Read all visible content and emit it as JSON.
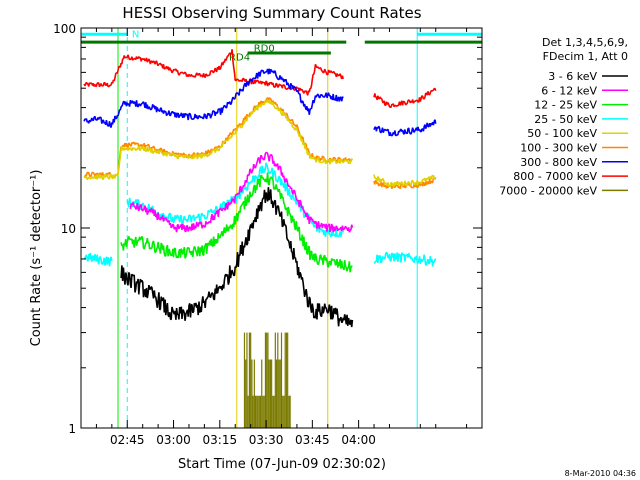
{
  "chart_data": {
    "type": "line",
    "title": "HESSI Observing Summary Count Rates",
    "xlabel": "Start Time (07-Jun-09 02:30:02)",
    "ylabel": "Count Rate (s⁻¹ detector⁻¹)",
    "yscale": "log",
    "ylim": [
      1,
      100
    ],
    "xlim_minutes": [
      30,
      160
    ],
    "x_ticks": [
      {
        "t": 45,
        "label": "02:45"
      },
      {
        "t": 60,
        "label": "03:00"
      },
      {
        "t": 75,
        "label": "03:15"
      },
      {
        "t": 90,
        "label": "03:30"
      },
      {
        "t": 105,
        "label": "03:45"
      },
      {
        "t": 120,
        "label": "04:00"
      }
    ],
    "y_ticks": [
      {
        "v": 1,
        "label": "1"
      },
      {
        "v": 10,
        "label": "10"
      },
      {
        "v": 100,
        "label": "100"
      }
    ],
    "legend": {
      "placement": "right",
      "header": [
        "Det 1,3,4,5,6,9,",
        "FDecim 1, Att 0"
      ]
    },
    "series": [
      {
        "name": "3 - 6 keV",
        "color": "#000000",
        "noise": 0.1,
        "t": [
          40,
          43,
          45,
          50,
          55,
          60,
          65,
          70,
          75,
          80,
          85,
          88,
          90,
          92,
          95,
          100,
          104,
          106,
          110,
          115,
          118
        ],
        "v": [
          null,
          6.0,
          5.6,
          5.0,
          4.4,
          3.6,
          3.8,
          4.2,
          5.0,
          6.5,
          10.0,
          13.0,
          15.0,
          14.0,
          11.0,
          6.5,
          4.2,
          3.8,
          4.0,
          3.4,
          3.3
        ]
      },
      {
        "name": "6 - 12 keV",
        "color": "#ff00ff",
        "noise": 0.05,
        "t": [
          46,
          50,
          55,
          60,
          65,
          70,
          75,
          80,
          85,
          88,
          90,
          92,
          95,
          100,
          104,
          106,
          110,
          115,
          118
        ],
        "v": [
          13.0,
          12.5,
          11.5,
          10.0,
          10.0,
          10.5,
          12.0,
          14.0,
          19.0,
          22.0,
          23.0,
          22.0,
          19.0,
          14.0,
          11.0,
          10.5,
          10.0,
          10.0,
          10.0
        ]
      },
      {
        "name": "12 - 25 keV",
        "color": "#00ee00",
        "noise": 0.07,
        "t": [
          43,
          45,
          50,
          55,
          60,
          65,
          70,
          75,
          80,
          85,
          88,
          90,
          92,
          95,
          100,
          104,
          106,
          110,
          115,
          118
        ],
        "v": [
          8.0,
          8.5,
          8.5,
          8.0,
          7.5,
          7.5,
          7.8,
          9.0,
          11.0,
          15.0,
          17.0,
          18.0,
          17.0,
          14.0,
          10.0,
          7.5,
          7.0,
          6.8,
          6.5,
          6.3
        ]
      },
      {
        "name": "25 - 50 keV",
        "color": "#00ffff",
        "noise": 0.06,
        "t": [
          31,
          35,
          40,
          43,
          45,
          50,
          55,
          60,
          65,
          70,
          75,
          80,
          85,
          88,
          90,
          92,
          95,
          100,
          104,
          106,
          110,
          115,
          120,
          125,
          130,
          140,
          145
        ],
        "v": [
          7.2,
          7.0,
          6.8,
          null,
          13.5,
          13.0,
          12.0,
          11.0,
          11.0,
          11.5,
          12.5,
          14.0,
          17.0,
          19.0,
          20.0,
          19.0,
          17.0,
          13.5,
          11.0,
          10.0,
          9.5,
          9.5,
          null,
          7.0,
          7.2,
          7.0,
          6.8
        ]
      },
      {
        "name": "50 - 100 keV",
        "color": "#e0d000",
        "noise": 0.03,
        "t": [
          31,
          42,
          43,
          50,
          55,
          60,
          65,
          70,
          75,
          80,
          85,
          88,
          90,
          92,
          95,
          100,
          104,
          106,
          110,
          115,
          118,
          120,
          125,
          130,
          140,
          145
        ],
        "v": [
          18.0,
          18.0,
          25.0,
          25.0,
          24.0,
          23.0,
          22.5,
          23.0,
          25.0,
          30.0,
          37.0,
          41.0,
          43.0,
          42.0,
          38.0,
          31.0,
          23.0,
          22.0,
          21.5,
          21.5,
          21.5,
          null,
          18.0,
          16.5,
          17.0,
          18.0
        ]
      },
      {
        "name": "100 - 300 keV",
        "color": "#ff8800",
        "noise": 0.03,
        "t": [
          31,
          42,
          43,
          50,
          55,
          60,
          65,
          70,
          75,
          80,
          85,
          88,
          90,
          92,
          95,
          100,
          104,
          106,
          110,
          115,
          118,
          120,
          125,
          130,
          140,
          145
        ],
        "v": [
          18.5,
          18.5,
          26.0,
          26.0,
          24.5,
          23.5,
          23.0,
          23.5,
          25.5,
          31.0,
          38.0,
          42.0,
          44.0,
          43.0,
          39.0,
          32.0,
          23.5,
          22.5,
          22.0,
          22.0,
          22.0,
          null,
          17.0,
          16.0,
          16.5,
          17.5
        ]
      },
      {
        "name": "300 - 800 keV",
        "color": "#0000ff",
        "noise": 0.04,
        "t": [
          31,
          35,
          40,
          44,
          50,
          55,
          60,
          65,
          70,
          75,
          79,
          80,
          85,
          88,
          90,
          92,
          95,
          100,
          104,
          106,
          110,
          115,
          120,
          125,
          130,
          140,
          145
        ],
        "v": [
          34.0,
          35.0,
          33.0,
          42.0,
          42.0,
          39.0,
          37.0,
          36.0,
          36.0,
          38.0,
          43.0,
          45.0,
          55.0,
          59.0,
          61.0,
          60.0,
          56.0,
          48.0,
          38.0,
          46.0,
          46.0,
          44.0,
          null,
          32.0,
          30.0,
          31.0,
          34.0
        ]
      },
      {
        "name": "800 - 7000 keV",
        "color": "#ff0000",
        "noise": 0.03,
        "t": [
          31,
          35,
          40,
          44,
          50,
          55,
          60,
          65,
          70,
          75,
          79,
          80,
          85,
          88,
          90,
          92,
          95,
          100,
          104,
          106,
          110,
          115,
          120,
          125,
          130,
          140,
          145
        ],
        "v": [
          52.0,
          52.0,
          52.0,
          72.0,
          70.0,
          66.0,
          61.0,
          58.0,
          58.0,
          63.0,
          77.0,
          55.0,
          54.0,
          53.0,
          53.0,
          52.0,
          51.0,
          50.0,
          47.0,
          64.0,
          60.0,
          57.0,
          null,
          46.0,
          41.0,
          44.0,
          50.0
        ]
      },
      {
        "name": "7000 - 20000 keV",
        "color": "#7a7a00",
        "noise": 0,
        "t": [
          81,
          99
        ],
        "v": [
          null,
          null
        ],
        "burst": {
          "t0": 83,
          "t1": 98,
          "lo": 1.0,
          "hi": [
            1.45,
            2.2,
            3.0
          ]
        }
      }
    ],
    "annotations": [
      {
        "label": "N",
        "color": "#00ffff"
      },
      {
        "label": "RD4",
        "color": "#007700"
      },
      {
        "label": "RD0",
        "color": "#007700"
      }
    ],
    "status_bars": [
      {
        "name": "cyan",
        "color": "#00ffff",
        "segments": [
          [
            30,
            45
          ],
          [
            139,
            160
          ]
        ],
        "value": 93
      },
      {
        "name": "green",
        "color": "#007700",
        "segments": [
          [
            30,
            116
          ],
          [
            122,
            160
          ]
        ],
        "value": 85
      },
      {
        "name": "green-rd0",
        "color": "#007700",
        "segments": [
          [
            84,
            111
          ]
        ],
        "value": 75
      }
    ],
    "vlines": [
      {
        "t": 30,
        "color": "#00ffff",
        "dash": false
      },
      {
        "t": 42,
        "color": "#00ee00",
        "dash": false
      },
      {
        "t": 45,
        "color": "#00ffff",
        "dash": true
      },
      {
        "t": 80.5,
        "color": "#e0d000",
        "dash": false
      },
      {
        "t": 110,
        "color": "#e0d000",
        "dash": false
      },
      {
        "t": 139,
        "color": "#00ffff",
        "dash": false
      },
      {
        "t": 160,
        "color": "#00ffff",
        "dash": true
      }
    ]
  },
  "footer": {
    "date_stamp": "8-Mar-2010 04:36"
  }
}
